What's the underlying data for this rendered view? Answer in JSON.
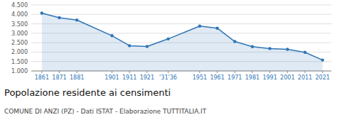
{
  "chart_data": {
    "type": "line",
    "title": "Popolazione residente ai censimenti",
    "subtitle": "COMUNE DI ANZI (PZ) - Dati ISTAT - Elaborazione TUTTITALIA.IT",
    "x": [
      1861,
      1871,
      1881,
      1901,
      1911,
      1921,
      1933,
      1951,
      1961,
      1971,
      1981,
      1991,
      2001,
      2011,
      2021
    ],
    "values": [
      4070,
      3820,
      3700,
      2870,
      2340,
      2300,
      2700,
      3380,
      3270,
      2560,
      2290,
      2190,
      2150,
      1990,
      1580
    ],
    "xlim": [
      1855,
      2026
    ],
    "xticks": [
      1861,
      1871,
      1881,
      1901,
      1911,
      1921,
      {
        "value": 1933,
        "label": "'31'36"
      },
      1951,
      1961,
      1971,
      1981,
      1991,
      2001,
      2011,
      2021
    ],
    "ylim": [
      1000,
      4500
    ],
    "yticks": [
      {
        "value": 1000,
        "label": "1.000"
      },
      {
        "value": 1500,
        "label": "1.500"
      },
      {
        "value": 2000,
        "label": "2.000"
      },
      {
        "value": 2500,
        "label": "2.500"
      },
      {
        "value": 3000,
        "label": "3.000"
      },
      {
        "value": 3500,
        "label": "3.500"
      },
      {
        "value": 4000,
        "label": "4.000"
      },
      {
        "value": 4500,
        "label": "4.500"
      }
    ],
    "grid": true,
    "color": "#2e75b6",
    "marker": "circle"
  }
}
